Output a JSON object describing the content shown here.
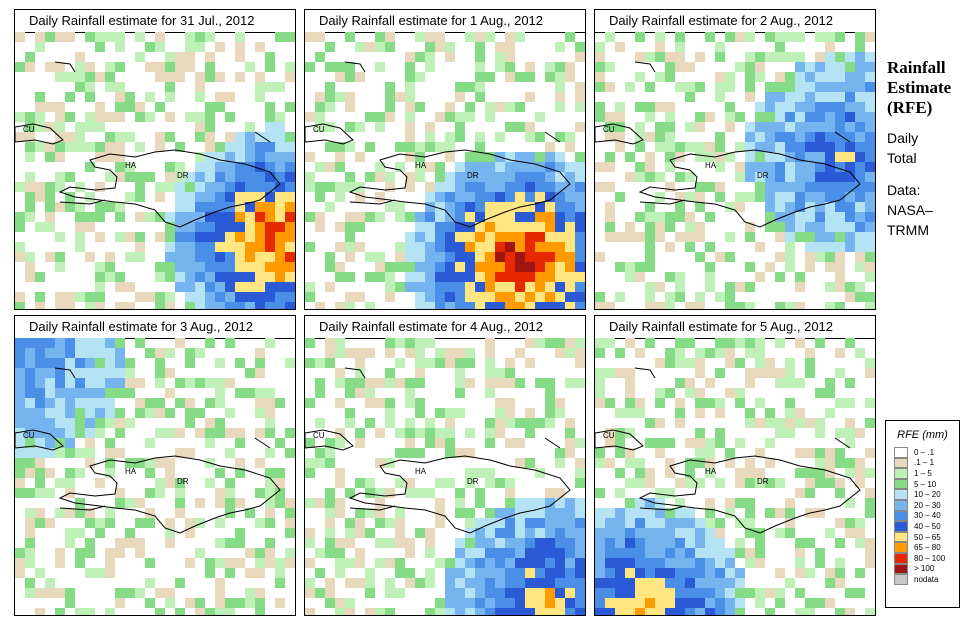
{
  "panels": [
    {
      "title": "Daily Rainfall estimate for  31 Jul., 2012",
      "hotspot": "east",
      "intensity": 0.9
    },
    {
      "title": "Daily Rainfall estimate for  1 Aug., 2012",
      "hotspot": "south",
      "intensity": 1.0
    },
    {
      "title": "Daily Rainfall estimate for  2 Aug., 2012",
      "hotspot": "northeast",
      "intensity": 0.5
    },
    {
      "title": "Daily Rainfall estimate for  3 Aug., 2012",
      "hotspot": "west",
      "intensity": 0.35
    },
    {
      "title": "Daily Rainfall estimate for  4 Aug., 2012",
      "hotspot": "southeast",
      "intensity": 0.65
    },
    {
      "title": "Daily Rainfall estimate for  5 Aug., 2012",
      "hotspot": "southwest",
      "intensity": 0.7
    }
  ],
  "region_labels": {
    "cuba": "CU",
    "haiti": "HA",
    "dominican_republic": "DR"
  },
  "side_panel": {
    "title_line1": "Rainfall",
    "title_line2": "Estimate",
    "title_line3": "(RFE)",
    "daily": "Daily",
    "total": "Total",
    "data": "Data:",
    "nasa": "NASA–",
    "trmm": "TRMM"
  },
  "legend": {
    "title": "RFE (mm)",
    "items": [
      {
        "label": "0 – .1",
        "color": "#ffffff"
      },
      {
        "label": ".1 – 1",
        "color": "#e8d8bc"
      },
      {
        "label": "1 – 5",
        "color": "#bff0b8"
      },
      {
        "label": "5 – 10",
        "color": "#86dc86"
      },
      {
        "label": "10 – 20",
        "color": "#b4e4f4"
      },
      {
        "label": "20 – 30",
        "color": "#76b4f0"
      },
      {
        "label": "30 – 40",
        "color": "#4a8ee8"
      },
      {
        "label": "40 – 50",
        "color": "#2a5ad6"
      },
      {
        "label": "50 – 65",
        "color": "#ffe680"
      },
      {
        "label": "65 – 80",
        "color": "#ff9a00"
      },
      {
        "label": "80 – 100",
        "color": "#e82800"
      },
      {
        "label": "> 100",
        "color": "#a01414"
      },
      {
        "label": "nodata",
        "color": "#c8c8c8"
      }
    ]
  }
}
